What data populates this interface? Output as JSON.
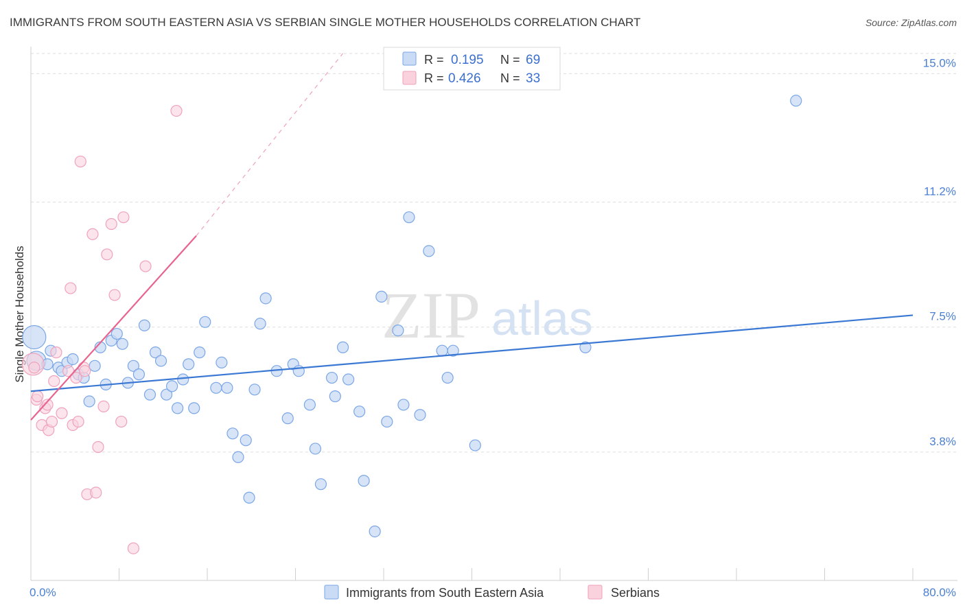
{
  "chart_data": {
    "type": "scatter",
    "title": "IMMIGRANTS FROM SOUTH EASTERN ASIA VS SERBIAN SINGLE MOTHER HOUSEHOLDS CORRELATION CHART",
    "source": "Source: ZipAtlas.com",
    "xlabel": "",
    "ylabel": "Single Mother Households",
    "xlim": [
      0,
      80
    ],
    "ylim": [
      0,
      15.8
    ],
    "x_tick_labels": [
      {
        "value": 0,
        "label": "0.0%"
      },
      {
        "value": 80,
        "label": "80.0%"
      }
    ],
    "y_ticks": [
      {
        "value": 3.8,
        "label": "3.8%"
      },
      {
        "value": 7.5,
        "label": "7.5%"
      },
      {
        "value": 11.2,
        "label": "11.2%"
      },
      {
        "value": 15.0,
        "label": "15.0%"
      }
    ],
    "watermark": {
      "zip": "ZIP",
      "atlas": "atlas"
    },
    "legend": [
      {
        "r_label": "R =",
        "r_value": "0.195",
        "n_label": "N =",
        "n_value": "69"
      },
      {
        "r_label": "R =",
        "r_value": "0.426",
        "n_label": "N =",
        "n_value": "33"
      }
    ],
    "series": [
      {
        "name": "Immigrants from South Eastern Asia",
        "color": "#7aa6e6",
        "fill": "#c9dbf5",
        "line_color": "#3a78d4",
        "trend": {
          "x0": 0,
          "y0": 5.6,
          "x1": 80,
          "y1": 7.85
        },
        "points": [
          [
            0.3,
            7.2
          ],
          [
            0.5,
            6.5
          ],
          [
            1.5,
            6.4
          ],
          [
            1.8,
            6.8
          ],
          [
            2.5,
            6.3
          ],
          [
            2.8,
            6.2
          ],
          [
            3.3,
            6.45
          ],
          [
            3.8,
            6.55
          ],
          [
            4.3,
            6.1
          ],
          [
            4.8,
            6.0
          ],
          [
            5.3,
            5.3
          ],
          [
            5.8,
            6.35
          ],
          [
            6.3,
            6.9
          ],
          [
            6.8,
            5.8
          ],
          [
            7.3,
            7.1
          ],
          [
            7.8,
            7.3
          ],
          [
            8.3,
            7.0
          ],
          [
            8.8,
            5.85
          ],
          [
            9.3,
            6.35
          ],
          [
            9.8,
            6.1
          ],
          [
            10.3,
            7.55
          ],
          [
            10.8,
            5.5
          ],
          [
            11.3,
            6.75
          ],
          [
            11.8,
            6.5
          ],
          [
            12.3,
            5.5
          ],
          [
            12.8,
            5.75
          ],
          [
            13.3,
            5.1
          ],
          [
            13.8,
            5.95
          ],
          [
            14.3,
            6.4
          ],
          [
            14.8,
            5.1
          ],
          [
            15.3,
            6.75
          ],
          [
            15.8,
            7.65
          ],
          [
            16.8,
            5.7
          ],
          [
            17.3,
            6.45
          ],
          [
            17.8,
            5.7
          ],
          [
            18.3,
            4.35
          ],
          [
            18.8,
            3.65
          ],
          [
            19.5,
            4.15
          ],
          [
            19.8,
            2.45
          ],
          [
            20.3,
            5.65
          ],
          [
            20.8,
            7.6
          ],
          [
            21.3,
            8.35
          ],
          [
            22.3,
            6.2
          ],
          [
            23.3,
            4.8
          ],
          [
            23.8,
            6.4
          ],
          [
            24.3,
            6.2
          ],
          [
            25.3,
            5.2
          ],
          [
            25.8,
            3.9
          ],
          [
            26.3,
            2.85
          ],
          [
            27.3,
            6.0
          ],
          [
            27.6,
            5.45
          ],
          [
            28.3,
            6.9
          ],
          [
            28.8,
            5.95
          ],
          [
            29.8,
            5.0
          ],
          [
            30.2,
            2.95
          ],
          [
            31.2,
            1.45
          ],
          [
            31.8,
            8.4
          ],
          [
            32.3,
            4.7
          ],
          [
            33.3,
            7.4
          ],
          [
            33.8,
            5.2
          ],
          [
            34.3,
            10.75
          ],
          [
            35.3,
            4.9
          ],
          [
            36.1,
            9.75
          ],
          [
            37.3,
            6.8
          ],
          [
            37.8,
            6.0
          ],
          [
            38.3,
            6.8
          ],
          [
            40.3,
            4.0
          ],
          [
            50.3,
            6.9
          ],
          [
            69.4,
            14.2
          ]
        ]
      },
      {
        "name": "Serbians",
        "color": "#f0a2bb",
        "fill": "#f9d2de",
        "line_color": "#e8648e",
        "trend": {
          "x0": 0,
          "y0": 4.75,
          "x1": 15,
          "y1": 10.2
        },
        "trend_ext": {
          "x0": 15,
          "y0": 10.2,
          "x1": 28.3,
          "y1": 15.6
        },
        "points": [
          [
            0.2,
            6.4
          ],
          [
            0.5,
            5.35
          ],
          [
            0.6,
            5.45
          ],
          [
            1.0,
            4.6
          ],
          [
            1.3,
            5.1
          ],
          [
            1.5,
            5.2
          ],
          [
            1.6,
            4.45
          ],
          [
            1.9,
            4.7
          ],
          [
            2.1,
            5.9
          ],
          [
            2.3,
            6.75
          ],
          [
            2.8,
            4.95
          ],
          [
            3.4,
            6.2
          ],
          [
            3.6,
            8.65
          ],
          [
            3.8,
            4.6
          ],
          [
            4.1,
            6.0
          ],
          [
            4.3,
            4.7
          ],
          [
            4.5,
            12.4
          ],
          [
            4.8,
            6.3
          ],
          [
            4.9,
            6.2
          ],
          [
            5.1,
            2.55
          ],
          [
            5.6,
            10.25
          ],
          [
            5.9,
            2.6
          ],
          [
            6.1,
            3.95
          ],
          [
            6.6,
            5.15
          ],
          [
            6.9,
            9.65
          ],
          [
            7.3,
            10.55
          ],
          [
            7.6,
            8.45
          ],
          [
            8.2,
            4.7
          ],
          [
            8.4,
            10.75
          ],
          [
            9.3,
            0.95
          ],
          [
            10.4,
            9.3
          ],
          [
            13.2,
            13.9
          ],
          [
            0.3,
            6.3
          ]
        ]
      }
    ]
  }
}
